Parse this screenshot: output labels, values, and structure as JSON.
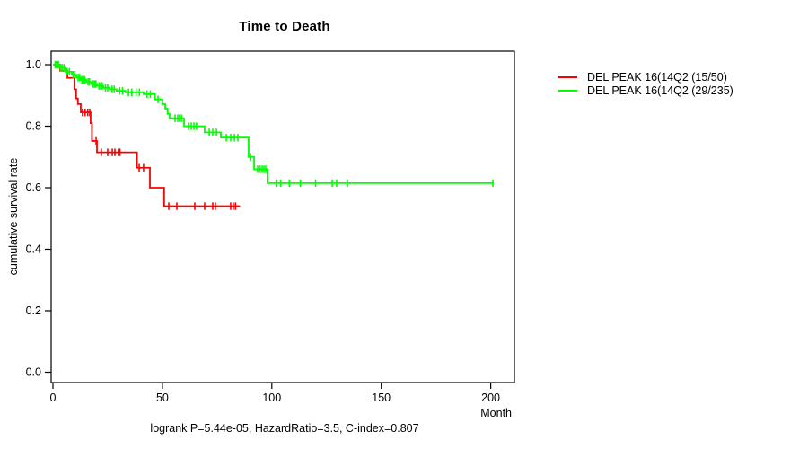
{
  "chart_data": {
    "type": "line",
    "subtype": "kaplan-meier-step",
    "title": "Time to Death",
    "xlabel": "Month",
    "ylabel": "cumulative survival rate",
    "annotation": "logrank P=5.44e-05, HazardRatio=3.5, C-index=0.807",
    "x_ticks": [
      0,
      50,
      100,
      150,
      200
    ],
    "y_ticks": [
      0.0,
      0.2,
      0.4,
      0.6,
      0.8,
      1.0
    ],
    "xlim": [
      0,
      210
    ],
    "ylim": [
      0.0,
      1.0
    ],
    "grid": false,
    "legend_position": "right-outside",
    "series": [
      {
        "name": "DEL PEAK 16(14Q2 (15/50)",
        "color": "#ff0000",
        "end_month": 85.5,
        "steps": [
          [
            0,
            1.0
          ],
          [
            3.3,
            0.98
          ],
          [
            6.6,
            0.957
          ],
          [
            9.8,
            0.92
          ],
          [
            10.6,
            0.89
          ],
          [
            11.4,
            0.872
          ],
          [
            12.7,
            0.845
          ],
          [
            17.2,
            0.81
          ],
          [
            17.8,
            0.752
          ],
          [
            20.1,
            0.715
          ],
          [
            38.4,
            0.665
          ],
          [
            44.3,
            0.6
          ],
          [
            50.8,
            0.54
          ]
        ],
        "censors": [
          [
            13.5,
            0.845
          ],
          [
            14.7,
            0.845
          ],
          [
            15.9,
            0.845
          ],
          [
            16.8,
            0.845
          ],
          [
            19.7,
            0.752
          ],
          [
            22.1,
            0.715
          ],
          [
            25,
            0.715
          ],
          [
            27.1,
            0.715
          ],
          [
            28.3,
            0.715
          ],
          [
            29.9,
            0.715
          ],
          [
            30.6,
            0.715
          ],
          [
            39.4,
            0.665
          ],
          [
            41.4,
            0.665
          ],
          [
            52.9,
            0.54
          ],
          [
            56.6,
            0.54
          ],
          [
            64.8,
            0.54
          ],
          [
            69.3,
            0.54
          ],
          [
            73,
            0.54
          ],
          [
            74.2,
            0.54
          ],
          [
            81.2,
            0.54
          ],
          [
            82.4,
            0.54
          ],
          [
            83.4,
            0.54
          ]
        ]
      },
      {
        "name": "DEL PEAK 16(14Q2 (29/235)",
        "color": "#00ff00",
        "end_month": 201.5,
        "steps": [
          [
            0,
            1.0
          ],
          [
            3,
            0.99
          ],
          [
            5.7,
            0.977
          ],
          [
            8.6,
            0.967
          ],
          [
            10.7,
            0.958
          ],
          [
            12.7,
            0.951
          ],
          [
            15.2,
            0.944
          ],
          [
            17.6,
            0.937
          ],
          [
            20.1,
            0.931
          ],
          [
            23,
            0.925
          ],
          [
            26,
            0.92
          ],
          [
            29.1,
            0.915
          ],
          [
            33.2,
            0.91
          ],
          [
            41.4,
            0.904
          ],
          [
            46.6,
            0.887
          ],
          [
            50,
            0.872
          ],
          [
            51.3,
            0.857
          ],
          [
            52.4,
            0.84
          ],
          [
            53.3,
            0.826
          ],
          [
            59.9,
            0.8
          ],
          [
            69.3,
            0.78
          ],
          [
            76.7,
            0.763
          ],
          [
            89.4,
            0.7
          ],
          [
            91.9,
            0.66
          ],
          [
            98,
            0.615
          ]
        ],
        "censors": [
          [
            1,
            1.0
          ],
          [
            1.5,
            1.0
          ],
          [
            2,
            1.0
          ],
          [
            2.5,
            1.0
          ],
          [
            3.5,
            0.99
          ],
          [
            4.2,
            0.99
          ],
          [
            5,
            0.99
          ],
          [
            6.5,
            0.977
          ],
          [
            7.5,
            0.977
          ],
          [
            9.2,
            0.967
          ],
          [
            10,
            0.967
          ],
          [
            11.5,
            0.958
          ],
          [
            12.2,
            0.958
          ],
          [
            13.2,
            0.951
          ],
          [
            13.8,
            0.951
          ],
          [
            14.5,
            0.951
          ],
          [
            16,
            0.944
          ],
          [
            16.7,
            0.944
          ],
          [
            18.3,
            0.937
          ],
          [
            19,
            0.937
          ],
          [
            19.6,
            0.937
          ],
          [
            21,
            0.931
          ],
          [
            21.8,
            0.931
          ],
          [
            22.5,
            0.931
          ],
          [
            24,
            0.925
          ],
          [
            25,
            0.925
          ],
          [
            27,
            0.92
          ],
          [
            28,
            0.92
          ],
          [
            30.5,
            0.915
          ],
          [
            31.8,
            0.915
          ],
          [
            34.5,
            0.91
          ],
          [
            36,
            0.91
          ],
          [
            38,
            0.91
          ],
          [
            39.5,
            0.91
          ],
          [
            43,
            0.904
          ],
          [
            44.5,
            0.904
          ],
          [
            48,
            0.887
          ],
          [
            55.8,
            0.826
          ],
          [
            57,
            0.826
          ],
          [
            57.8,
            0.826
          ],
          [
            58.7,
            0.826
          ],
          [
            61.9,
            0.8
          ],
          [
            63.2,
            0.8
          ],
          [
            64.4,
            0.8
          ],
          [
            65.6,
            0.8
          ],
          [
            71.4,
            0.78
          ],
          [
            73,
            0.78
          ],
          [
            74.7,
            0.78
          ],
          [
            79.2,
            0.763
          ],
          [
            81.2,
            0.763
          ],
          [
            82.9,
            0.763
          ],
          [
            84.5,
            0.763
          ],
          [
            90.3,
            0.7
          ],
          [
            93.5,
            0.66
          ],
          [
            94.7,
            0.66
          ],
          [
            95.6,
            0.66
          ],
          [
            96.4,
            0.66
          ],
          [
            97.2,
            0.66
          ],
          [
            102,
            0.615
          ],
          [
            104,
            0.615
          ],
          [
            108,
            0.615
          ],
          [
            113,
            0.615
          ],
          [
            120,
            0.615
          ],
          [
            127.6,
            0.615
          ],
          [
            129.6,
            0.615
          ],
          [
            134.5,
            0.615
          ],
          [
            201,
            0.615
          ]
        ]
      }
    ]
  }
}
